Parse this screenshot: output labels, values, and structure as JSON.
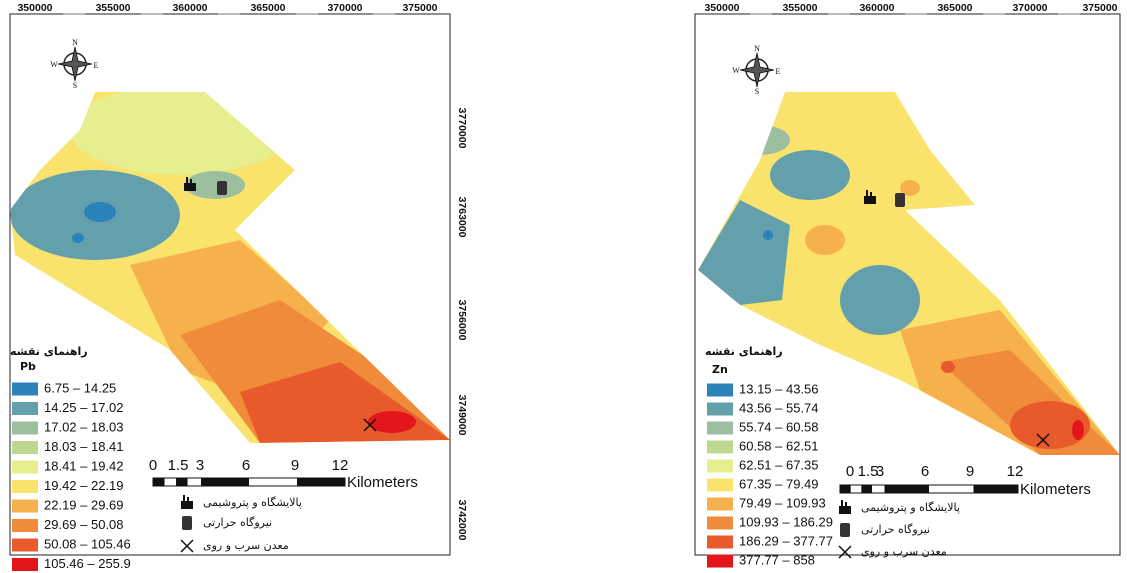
{
  "panels": [
    {
      "x_ticks": [
        "350000",
        "355000",
        "360000",
        "365000",
        "370000",
        "375000"
      ],
      "y_ticks": [
        "3770000",
        "3763000",
        "3756000",
        "3749000",
        "3742000"
      ],
      "compass": [
        "N",
        "S",
        "W",
        "E"
      ],
      "legend_title": "راهنمای نقشه",
      "element": "Pb",
      "classes": [
        {
          "label": "6.75 – 14.25",
          "color": "#2b83ba"
        },
        {
          "label": "14.25 – 17.02",
          "color": "#64a0ab"
        },
        {
          "label": "17.02 – 18.03",
          "color": "#9cc09f"
        },
        {
          "label": "18.03 – 18.41",
          "color": "#bfd88f"
        },
        {
          "label": "18.41 – 19.42",
          "color": "#e7ee8f"
        },
        {
          "label": "19.42 – 22.19",
          "color": "#fae36c"
        },
        {
          "label": "22.19 – 29.69",
          "color": "#f6b14c"
        },
        {
          "label": "29.69 – 50.08",
          "color": "#f18b3c"
        },
        {
          "label": "50.08 – 105.46",
          "color": "#e85a2b"
        },
        {
          "label": "105.46 – 255.9",
          "color": "#e3161c"
        }
      ],
      "scale_labels": [
        "0",
        "1.5",
        "3",
        "6",
        "9",
        "12"
      ],
      "scale_unit": "Kilometers",
      "symbols": [
        "پالایشگاه و پتروشیمی",
        "نیروگاه حرارتی",
        "معدن سرب و روی"
      ]
    },
    {
      "x_ticks": [
        "350000",
        "355000",
        "360000",
        "365000",
        "370000",
        "375000"
      ],
      "y_ticks": [],
      "compass": [
        "N",
        "S",
        "W",
        "E"
      ],
      "legend_title": "راهنمای نقشه",
      "element": "Zn",
      "classes": [
        {
          "label": "13.15 – 43.56",
          "color": "#2b83ba"
        },
        {
          "label": "43.56 – 55.74",
          "color": "#64a0ab"
        },
        {
          "label": "55.74 – 60.58",
          "color": "#9cc09f"
        },
        {
          "label": "60.58 – 62.51",
          "color": "#bfd88f"
        },
        {
          "label": "62.51 – 67.35",
          "color": "#e7ee8f"
        },
        {
          "label": "67.35 – 79.49",
          "color": "#fae36c"
        },
        {
          "label": "79.49 – 109.93",
          "color": "#f6b14c"
        },
        {
          "label": "109.93 – 186.29",
          "color": "#f18b3c"
        },
        {
          "label": "186.29 – 377.77",
          "color": "#e85a2b"
        },
        {
          "label": "377.77 – 858",
          "color": "#e3161c"
        }
      ],
      "scale_labels": [
        "0",
        "1.5",
        "3",
        "6",
        "9",
        "12"
      ],
      "scale_unit": "Kilometers",
      "symbols": [
        "پالایشگاه و پتروشیمی",
        "نیروگاه حرارتی",
        "معدن سرب و روی"
      ]
    }
  ]
}
